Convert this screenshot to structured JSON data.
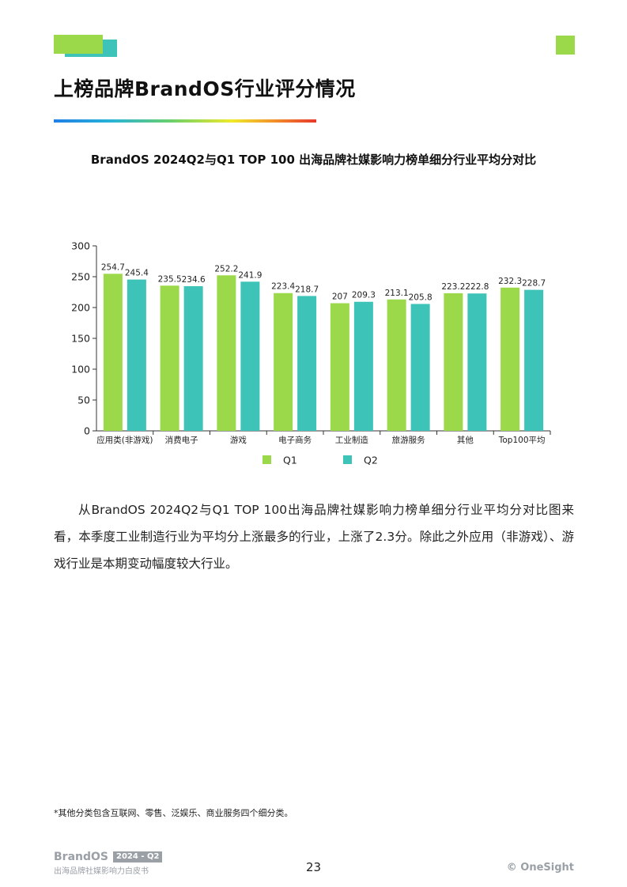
{
  "page": {
    "title": "上榜品牌BrandOS行业评分情况",
    "colors": {
      "accent_green": "#9bd94a",
      "accent_teal": "#3ec3b8"
    }
  },
  "chart_title": "BrandOS 2024Q2与Q1 TOP 100 出海品牌社媒影响力榜单细分行业平均分对比",
  "chart_data": {
    "type": "bar",
    "title": "BrandOS 2024Q2与Q1 TOP 100 出海品牌社媒影响力榜单细分行业平均分对比",
    "categories": [
      "应用类(非游戏)",
      "消费电子",
      "游戏",
      "电子商务",
      "工业制造",
      "旅游服务",
      "其他",
      "Top100平均"
    ],
    "series": [
      {
        "name": "Q1",
        "color": "#9bd94a",
        "values": [
          254.7,
          235.5,
          252.2,
          223.4,
          207,
          213.1,
          223.2,
          232.3
        ]
      },
      {
        "name": "Q2",
        "color": "#3ec3b8",
        "values": [
          245.4,
          234.6,
          241.9,
          218.7,
          209.3,
          205.8,
          222.8,
          228.7
        ]
      }
    ],
    "y_ticks": [
      0,
      50,
      100,
      150,
      200,
      250,
      300
    ],
    "ylim": [
      0,
      300
    ],
    "grid": false,
    "legend_position": "bottom"
  },
  "body": {
    "paragraph": "从BrandOS 2024Q2与Q1 TOP 100出海品牌社媒影响力榜单细分行业平均分对比图来看，本季度工业制造行业为平均分上涨最多的行业，上涨了2.3分。除此之外应用（非游戏）、游戏行业是本期变动幅度较大行业。"
  },
  "footnote": "*其他分类包含互联网、零售、泛娱乐、商业服务四个细分类。",
  "footer": {
    "brand": "BrandOS",
    "badge": "2024 - Q2",
    "subtitle": "出海品牌社媒影响力白皮书",
    "page_number": "23",
    "copyright": "© OneSight"
  }
}
